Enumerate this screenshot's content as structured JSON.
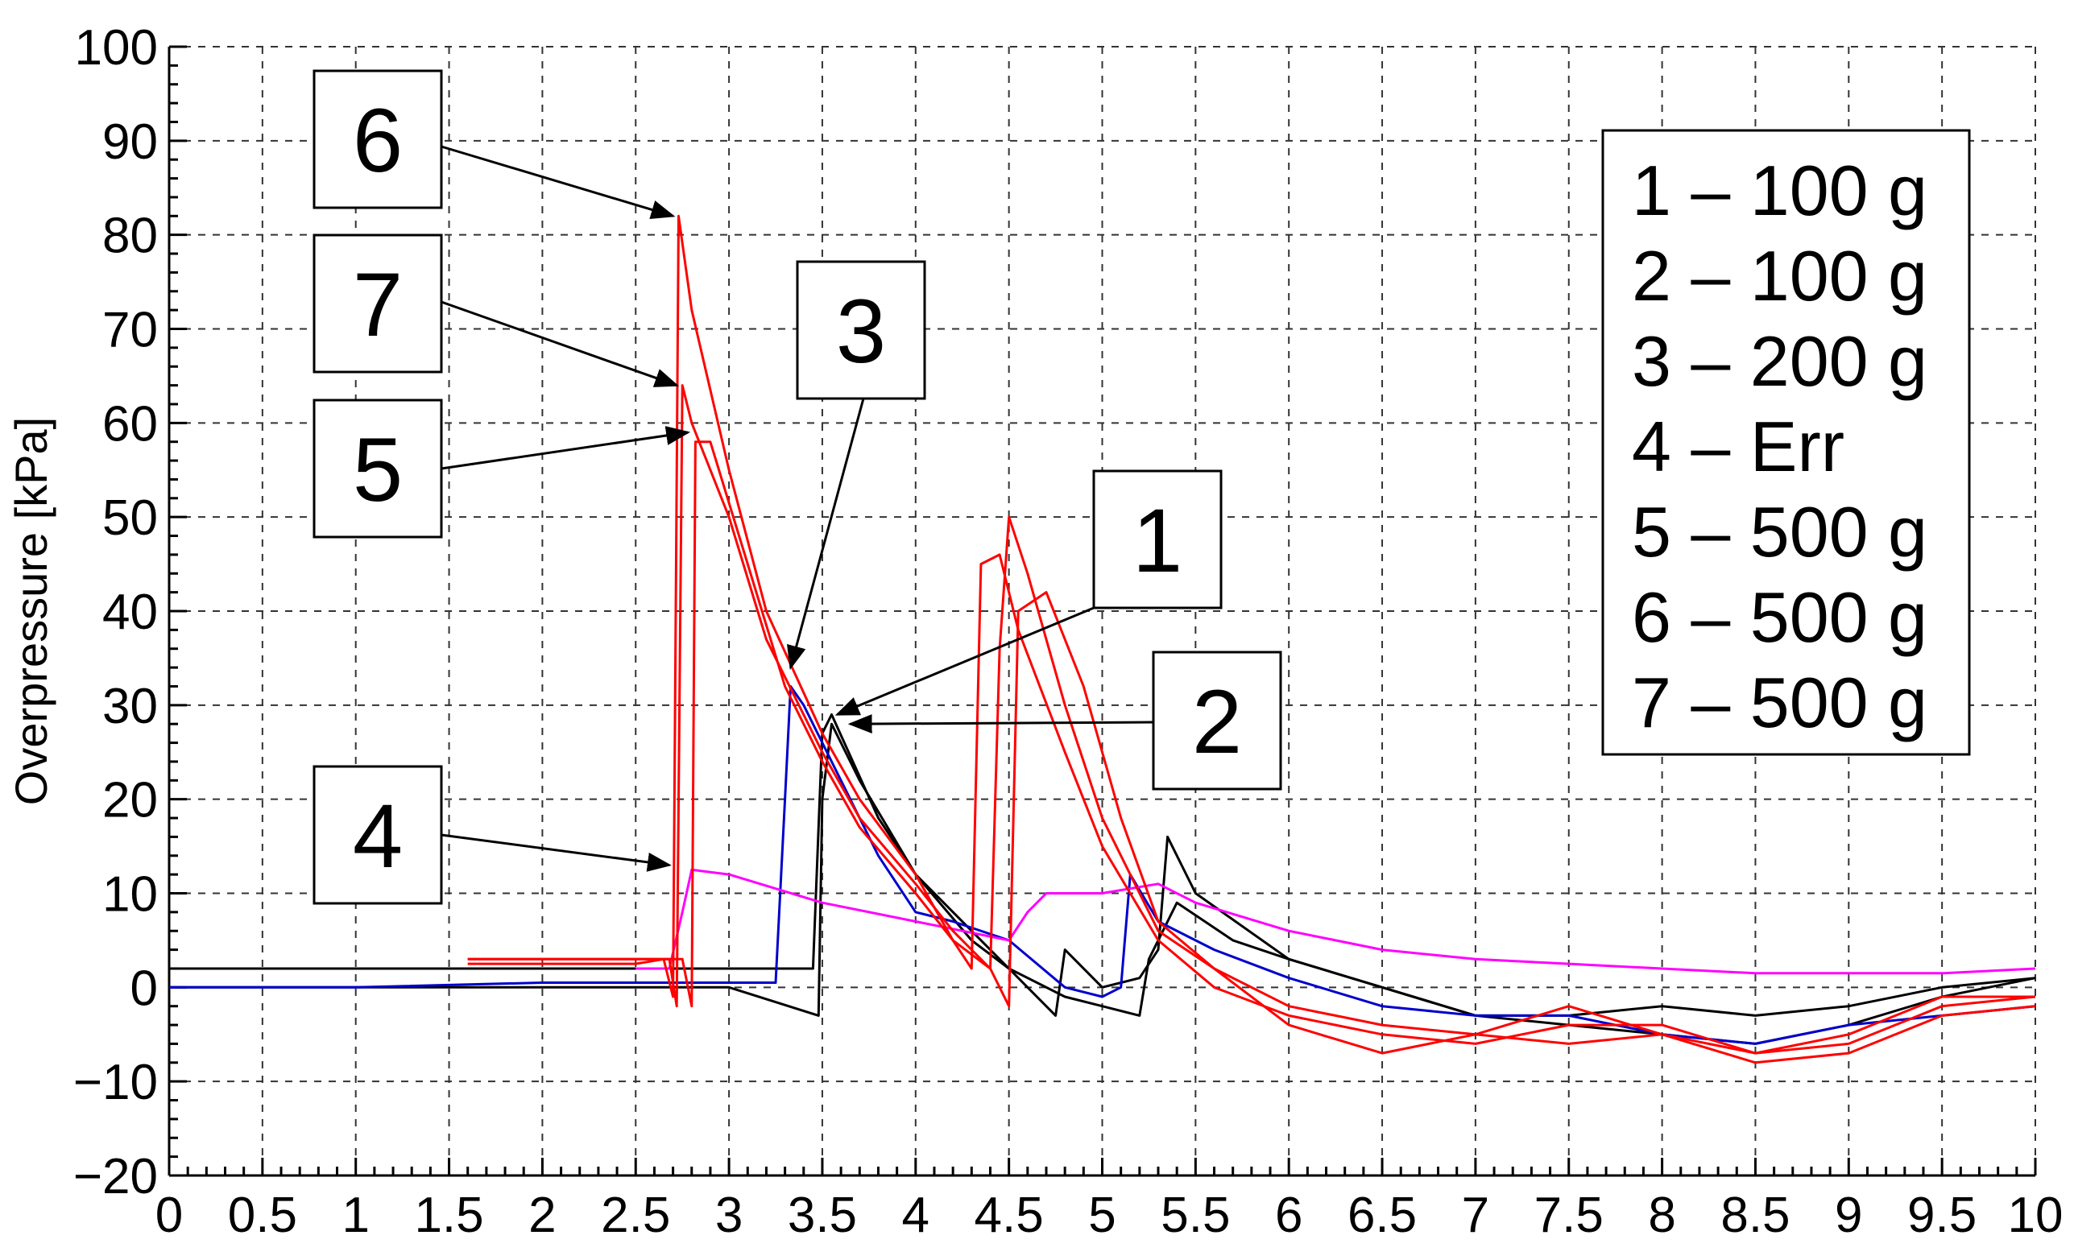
{
  "chart_data": {
    "type": "line",
    "ylabel": "Overpressure [kPa]",
    "xlabel": "",
    "title": "",
    "xlim": [
      0,
      10
    ],
    "ylim": [
      -20,
      100
    ],
    "x_ticks": [
      "0",
      "0.5",
      "1",
      "1.5",
      "2",
      "2.5",
      "3",
      "3.5",
      "4",
      "4.5",
      "5",
      "5.5",
      "6",
      "6.5",
      "7",
      "7.5",
      "8",
      "8.5",
      "9",
      "9.5",
      "10"
    ],
    "y_ticks": [
      "100",
      "90",
      "80",
      "70",
      "60",
      "50",
      "40",
      "30",
      "20",
      "10",
      "0",
      "−10",
      "−20"
    ],
    "grid": true,
    "legend_position": "top-right",
    "legend": [
      "1 – 100 g",
      "2 – 100 g",
      "3 – 200 g",
      "4 – Err",
      "5 – 500 g",
      "6 – 500 g",
      "7 – 500 g"
    ],
    "callouts": [
      {
        "label": "6",
        "target": [
          2.7,
          82
        ]
      },
      {
        "label": "7",
        "target": [
          2.72,
          64
        ]
      },
      {
        "label": "5",
        "target": [
          2.78,
          59
        ]
      },
      {
        "label": "3",
        "target": [
          3.33,
          34
        ]
      },
      {
        "label": "1",
        "target": [
          3.58,
          29
        ]
      },
      {
        "label": "2",
        "target": [
          3.65,
          28
        ]
      },
      {
        "label": "4",
        "target": [
          2.68,
          13
        ]
      }
    ],
    "series": [
      {
        "label": "1",
        "color": "#000000",
        "x": [
          0,
          1,
          2,
          3,
          3.45,
          3.5,
          3.55,
          3.8,
          4.0,
          4.3,
          4.5,
          4.75,
          4.8,
          5.0,
          5.2,
          5.3,
          5.35,
          5.5,
          6.0,
          6.5,
          7.0,
          7.5,
          8.0,
          8.5,
          9.0,
          9.5,
          10
        ],
        "y": [
          2,
          2,
          2,
          2,
          2,
          27,
          29,
          18,
          12,
          5,
          2,
          -3,
          4,
          0,
          1,
          4,
          16,
          10,
          3,
          0,
          -3,
          -4,
          -5,
          -6,
          -4,
          -1,
          1
        ]
      },
      {
        "label": "2",
        "color": "#000000",
        "x": [
          0,
          1,
          2,
          3,
          3.48,
          3.5,
          3.55,
          3.7,
          4.0,
          4.3,
          4.5,
          4.8,
          5.0,
          5.2,
          5.25,
          5.4,
          5.7,
          6.0,
          6.5,
          7.0,
          7.5,
          8.0,
          8.5,
          9.0,
          9.5,
          10
        ],
        "y": [
          0,
          0,
          0,
          0,
          -3,
          20,
          28,
          22,
          12,
          6,
          2,
          -1,
          -2,
          -3,
          3,
          9,
          5,
          3,
          0,
          -3,
          -3,
          -2,
          -3,
          -2,
          0,
          1
        ]
      },
      {
        "label": "3",
        "color": "#0000cc",
        "x": [
          0,
          1,
          2,
          3,
          3.25,
          3.3,
          3.33,
          3.4,
          3.6,
          3.8,
          4.0,
          4.2,
          4.5,
          4.8,
          5.0,
          5.1,
          5.15,
          5.3,
          5.6,
          6.0,
          6.5,
          7.0,
          7.5,
          8.0,
          8.5,
          9.0,
          9.5,
          10
        ],
        "y": [
          0,
          0,
          0.5,
          0.5,
          0.5,
          20,
          32,
          30,
          22,
          14,
          8,
          7,
          5,
          0,
          -1,
          0,
          12,
          7,
          4,
          1,
          -2,
          -3,
          -3,
          -5,
          -6,
          -4,
          -3,
          -2
        ]
      },
      {
        "label": "4",
        "color": "#ff00ff",
        "x": [
          2.5,
          2.68,
          2.75,
          2.8,
          3.0,
          3.5,
          4.0,
          4.5,
          4.6,
          4.7,
          5.0,
          5.3,
          5.5,
          6.0,
          6.5,
          7.0,
          7.5,
          8.0,
          8.5,
          9.0,
          9.5,
          10
        ],
        "y": [
          2,
          2,
          8,
          12.5,
          12,
          9,
          7,
          5,
          8,
          10,
          10,
          11,
          9,
          6,
          4,
          3,
          2.5,
          2,
          1.5,
          1.5,
          1.5,
          2
        ]
      },
      {
        "label": "5",
        "color": "#ff0000",
        "x": [
          1.6,
          2.0,
          2.5,
          2.75,
          2.8,
          2.82,
          2.9,
          3.1,
          3.3,
          3.5,
          3.7,
          4.0,
          4.2,
          4.4,
          4.5,
          4.55,
          4.7,
          4.9,
          5.1,
          5.3,
          5.6,
          6.0,
          6.5,
          7.0,
          7.5,
          8.0,
          8.5,
          9.0,
          9.5,
          10
        ],
        "y": [
          3,
          3,
          3,
          3,
          -2,
          58,
          58,
          45,
          32,
          24,
          17,
          10,
          5,
          2,
          -2,
          40,
          42,
          32,
          18,
          7,
          2,
          -4,
          -7,
          -5,
          -6,
          -5,
          -8,
          -7,
          -3,
          -2
        ]
      },
      {
        "label": "6",
        "color": "#ff0000",
        "x": [
          1.6,
          2.0,
          2.5,
          2.65,
          2.7,
          2.73,
          2.8,
          3.0,
          3.2,
          3.5,
          3.7,
          4.0,
          4.2,
          4.3,
          4.35,
          4.45,
          4.55,
          4.8,
          5.0,
          5.3,
          5.6,
          6.0,
          6.5,
          7.0,
          7.5,
          8.0,
          8.5,
          9.0,
          9.5,
          10
        ],
        "y": [
          2.5,
          2.5,
          2.5,
          3,
          -1,
          82,
          72,
          55,
          40,
          27,
          20,
          12,
          5,
          2,
          45,
          46,
          38,
          25,
          15,
          5,
          0,
          -3,
          -5,
          -6,
          -4,
          -4,
          -7,
          -6,
          -2,
          -1
        ]
      },
      {
        "label": "7",
        "color": "#ff0000",
        "x": [
          1.6,
          2.0,
          2.5,
          2.68,
          2.72,
          2.75,
          2.8,
          3.0,
          3.2,
          3.5,
          3.7,
          4.0,
          4.2,
          4.4,
          4.45,
          4.5,
          4.6,
          4.8,
          5.0,
          5.3,
          5.6,
          6.0,
          6.5,
          7.0,
          7.5,
          8.0,
          8.5,
          9.0,
          9.5,
          10
        ],
        "y": [
          3,
          3,
          3,
          3,
          -2,
          64,
          60,
          50,
          37,
          25,
          18,
          11,
          6,
          2,
          36,
          50,
          44,
          30,
          18,
          6,
          2,
          -2,
          -4,
          -5,
          -2,
          -5,
          -7,
          -5,
          -1,
          -1
        ]
      }
    ]
  }
}
